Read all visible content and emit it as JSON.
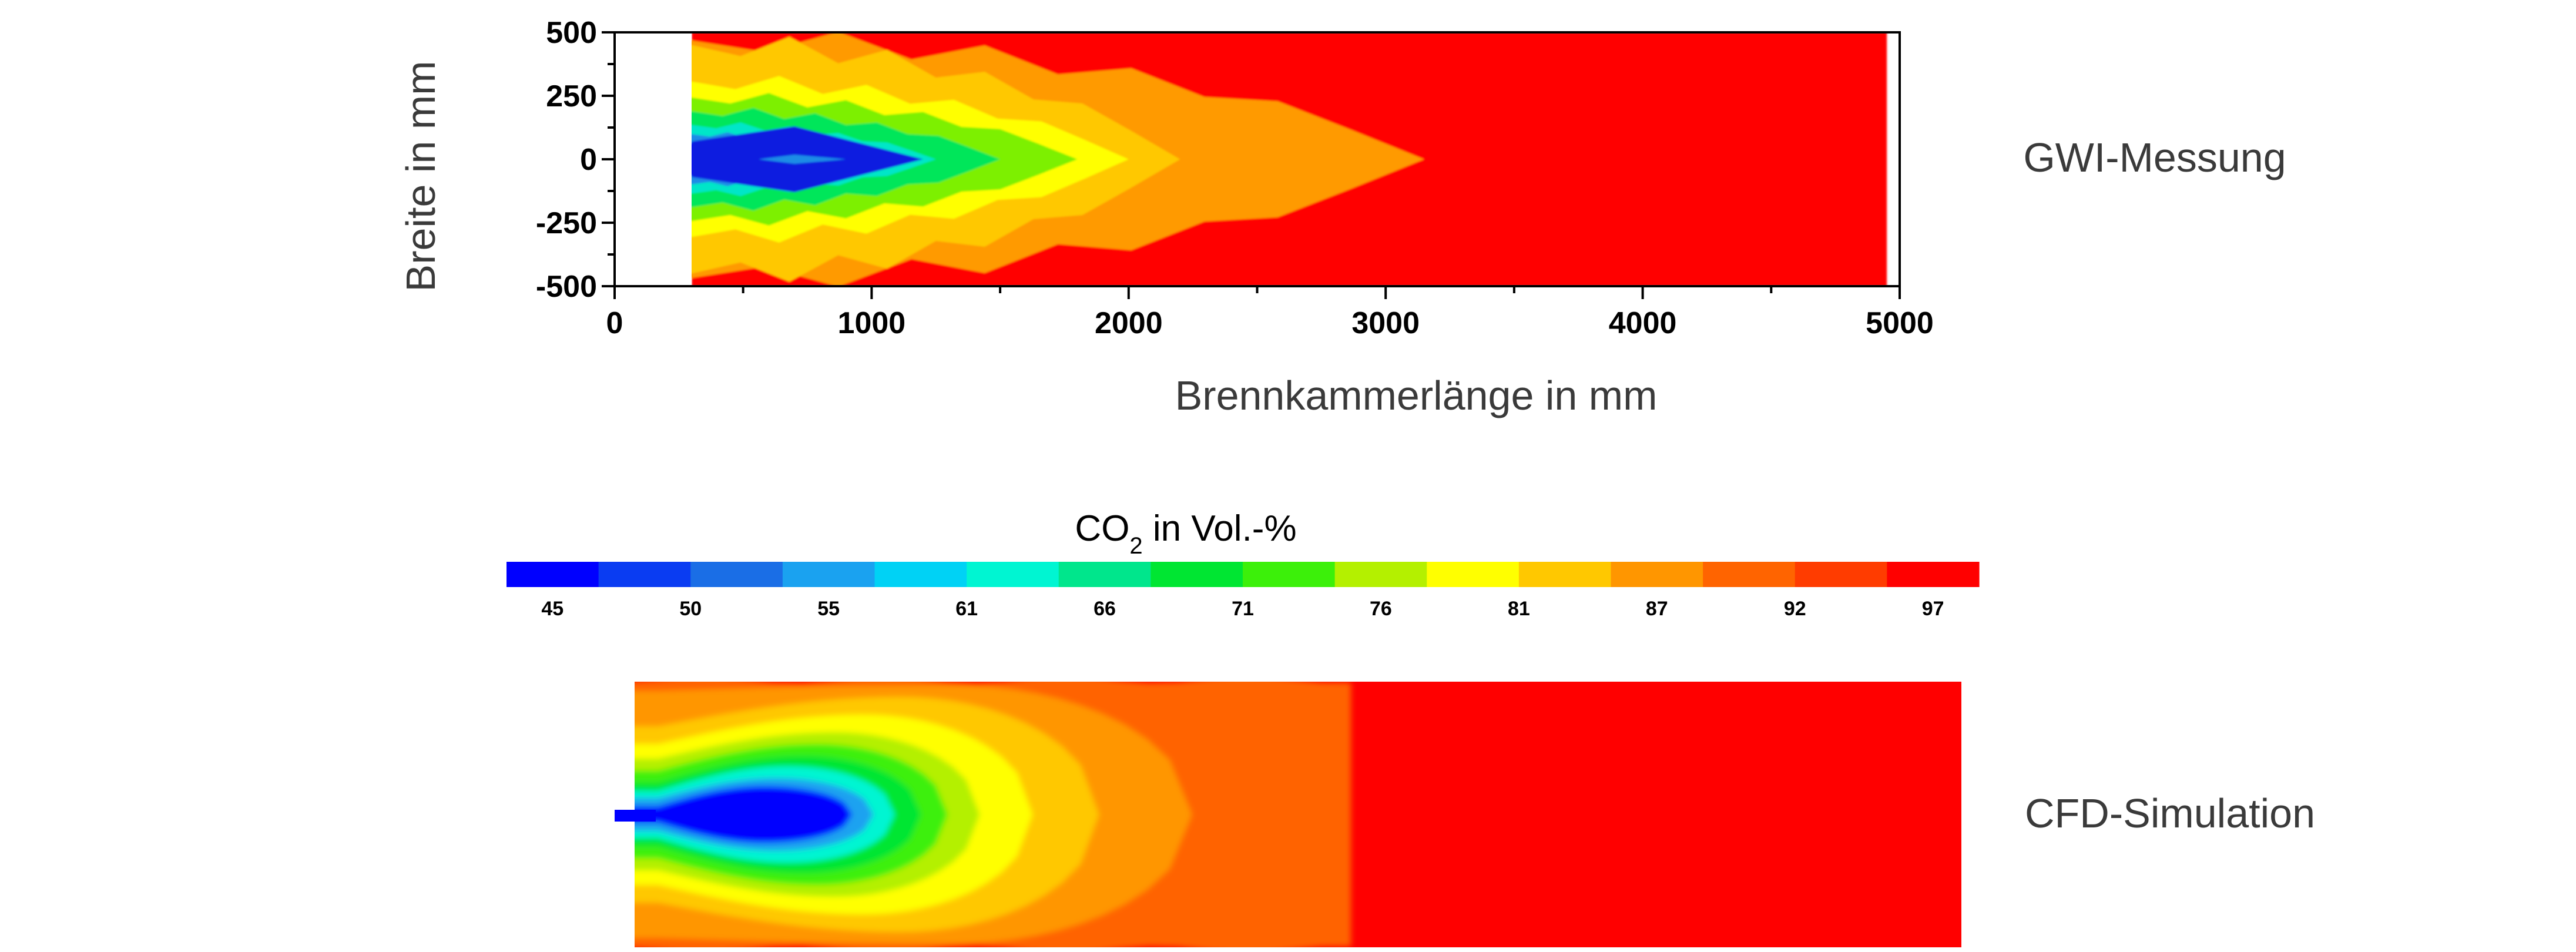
{
  "labels": {
    "top_right": "GWI-Messung",
    "bottom_right": "CFD-Simulation"
  },
  "chart_data": [
    {
      "type": "heatmap",
      "title": "",
      "xlabel": "Brennkammerlänge in mm",
      "ylabel": "Breite in mm",
      "xlim": [
        0,
        5000
      ],
      "ylim": [
        -500,
        500
      ],
      "x_ticks": [
        "0",
        "1000",
        "2000",
        "3000",
        "4000",
        "5000"
      ],
      "y_ticks": [
        "500",
        "250",
        "0",
        "-250",
        "-500"
      ],
      "measurement_start_x": 300,
      "measurement_end_x": 4950,
      "grid": false,
      "colorbar": {
        "title_main": "CO",
        "title_sub": "2",
        "title_rest": " in Vol.-%",
        "tick_labels": [
          "45",
          "50",
          "55",
          "61",
          "66",
          "71",
          "76",
          "81",
          "87",
          "92",
          "97"
        ],
        "colors": [
          "#0000ff",
          "#0a3cf2",
          "#1a6ee6",
          "#1aa2f0",
          "#00d2f5",
          "#00f5d2",
          "#00e68c",
          "#00e632",
          "#3cf00a",
          "#b4f000",
          "#ffff00",
          "#ffc800",
          "#ff9600",
          "#ff6400",
          "#ff3c00",
          "#ff0000"
        ]
      },
      "contours_iso_x": [
        {
          "level": "#ff9a00",
          "xmax": 3150
        },
        {
          "level": "#ffc800",
          "xmax": 2200
        },
        {
          "level": "#ffff00",
          "xmax": 2000
        },
        {
          "level": "#7df000",
          "xmax": 1800
        },
        {
          "level": "#00e65a",
          "xmax": 1500
        },
        {
          "level": "#00e6c8",
          "xmax": 1250
        },
        {
          "level": "#1a8ce6",
          "xmax": 1000
        },
        {
          "level": "#0000ff",
          "xmax": 800
        }
      ]
    },
    {
      "type": "heatmap",
      "title": "",
      "x_range_mm": [
        0,
        5000
      ],
      "contour_colors": [
        "#ff6400",
        "#ff9600",
        "#ffc800",
        "#ffff00",
        "#b4f000",
        "#3cf00a",
        "#00e632",
        "#00f5d2",
        "#1aa2f0",
        "#0000ff"
      ]
    }
  ]
}
